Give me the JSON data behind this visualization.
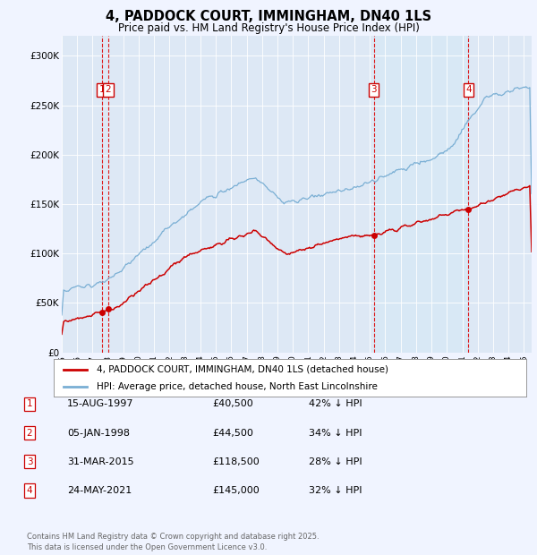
{
  "title": "4, PADDOCK COURT, IMMINGHAM, DN40 1LS",
  "subtitle": "Price paid vs. HM Land Registry's House Price Index (HPI)",
  "background_color": "#f0f4ff",
  "plot_bg_color": "#dde8f5",
  "legend_line1": "4, PADDOCK COURT, IMMINGHAM, DN40 1LS (detached house)",
  "legend_line2": "HPI: Average price, detached house, North East Lincolnshire",
  "footer": "Contains HM Land Registry data © Crown copyright and database right 2025.\nThis data is licensed under the Open Government Licence v3.0.",
  "transactions": [
    {
      "num": 1,
      "date": "15-AUG-1997",
      "price": 40500,
      "year": 1997.62
    },
    {
      "num": 2,
      "date": "05-JAN-1998",
      "price": 44500,
      "year": 1998.01
    },
    {
      "num": 3,
      "date": "31-MAR-2015",
      "price": 118500,
      "year": 2015.25
    },
    {
      "num": 4,
      "date": "24-MAY-2021",
      "price": 145000,
      "year": 2021.4
    }
  ],
  "table_rows": [
    {
      "num": 1,
      "date": "15-AUG-1997",
      "price": "£40,500",
      "pct": "42% ↓ HPI"
    },
    {
      "num": 2,
      "date": "05-JAN-1998",
      "price": "£44,500",
      "pct": "34% ↓ HPI"
    },
    {
      "num": 3,
      "date": "31-MAR-2015",
      "price": "£118,500",
      "pct": "28% ↓ HPI"
    },
    {
      "num": 4,
      "date": "24-MAY-2021",
      "price": "£145,000",
      "pct": "32% ↓ HPI"
    }
  ],
  "ylim": [
    0,
    320000
  ],
  "yticks": [
    0,
    50000,
    100000,
    150000,
    200000,
    250000,
    300000
  ],
  "xlim_start": 1995.0,
  "xlim_end": 2025.5,
  "red_line_color": "#cc0000",
  "blue_line_color": "#7aafd4",
  "shade_color": "#d8e8f5",
  "vline_color": "#dd0000",
  "box_color": "#cc0000",
  "shade_x1": 2015.25,
  "shade_x2": 2021.4
}
